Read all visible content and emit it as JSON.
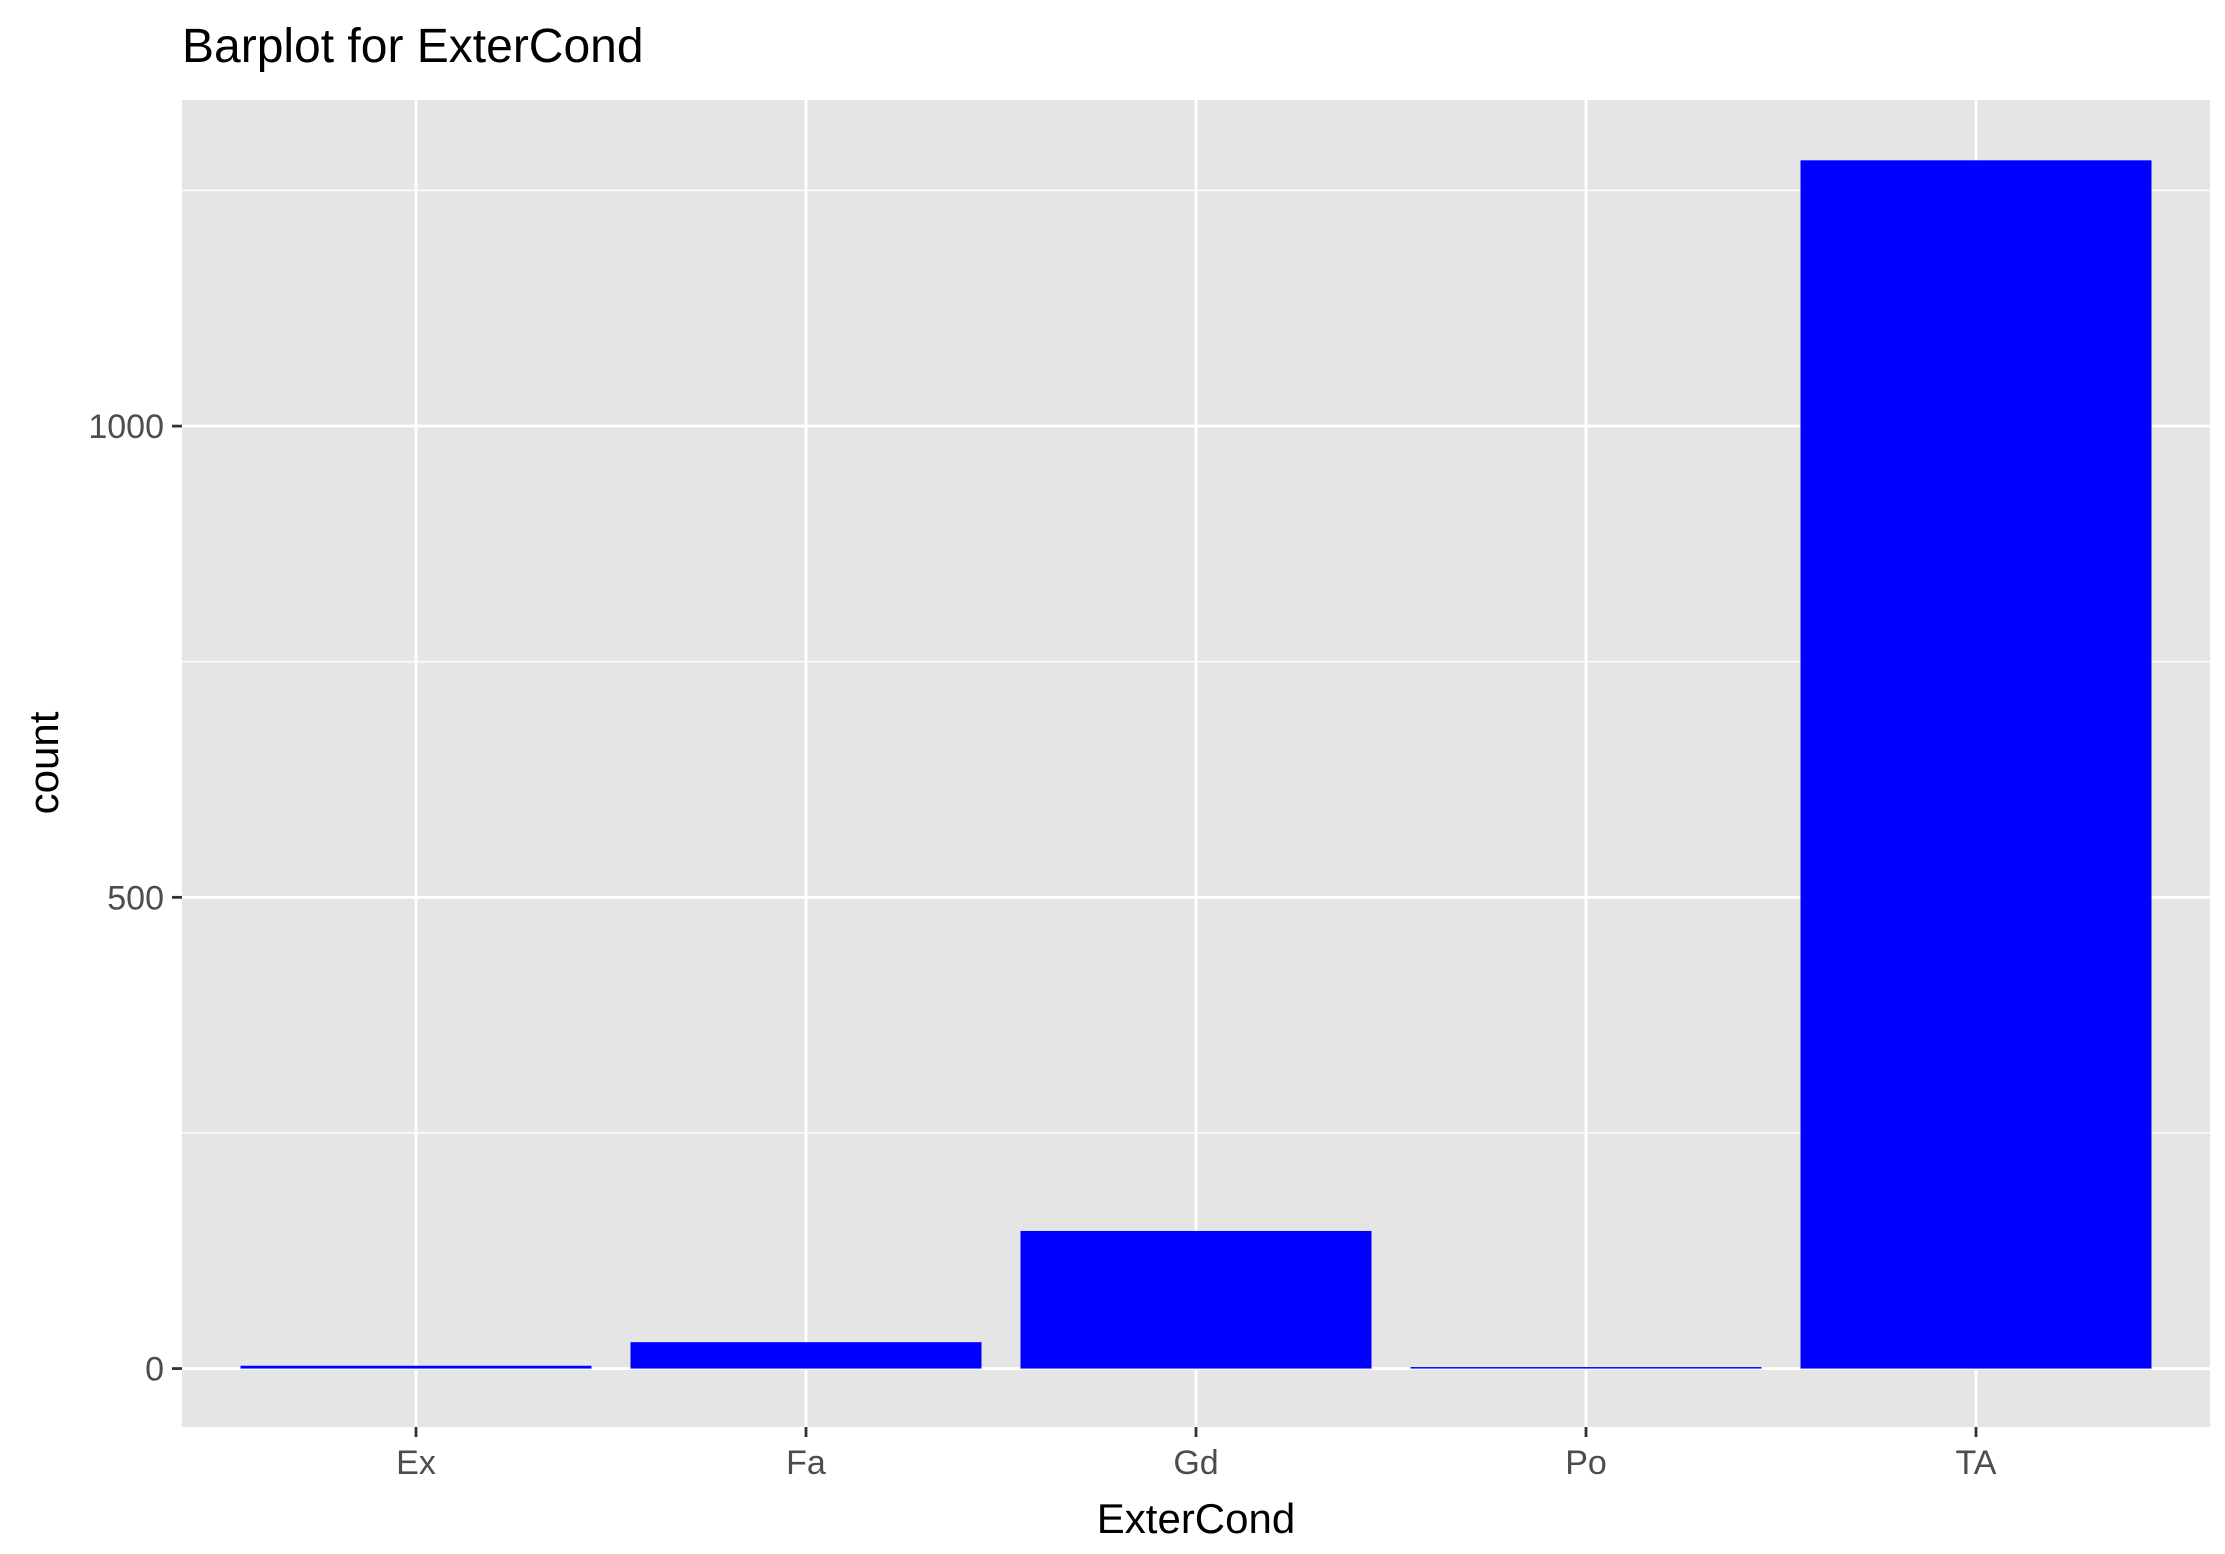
{
  "chart_data": {
    "type": "bar",
    "title": "Barplot for ExterCond",
    "xlabel": "ExterCond",
    "ylabel": "count",
    "categories": [
      "Ex",
      "Fa",
      "Gd",
      "Po",
      "TA"
    ],
    "values": [
      3,
      28,
      146,
      1,
      1282
    ],
    "ylim": [
      -62,
      1346
    ],
    "y_major_ticks": [
      0,
      500,
      1000
    ],
    "y_minor_ticks": [
      250,
      750,
      1250
    ],
    "y_tick_labels": [
      "0",
      "500",
      "1000"
    ],
    "grid": true,
    "legend": "none",
    "colors": {
      "bar": "#0000ff",
      "panel_background": "#e5e5e5",
      "grid_line": "#ffffff",
      "tick_mark": "#333333",
      "tick_label": "#4d4d4d",
      "text": "#000000"
    }
  }
}
